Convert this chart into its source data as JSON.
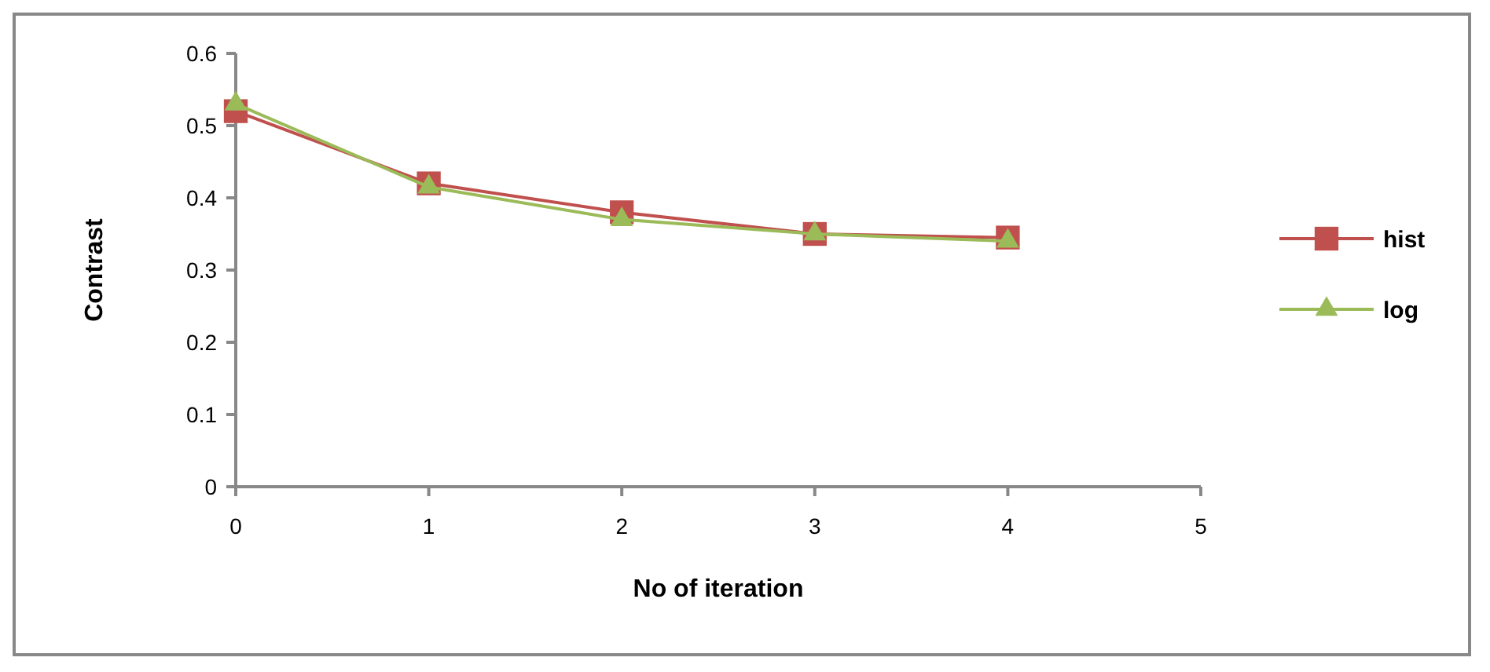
{
  "chart_data": {
    "type": "line",
    "xlabel": "No of iteration",
    "ylabel": "Contrast",
    "x": [
      0,
      1,
      2,
      3,
      4
    ],
    "series": [
      {
        "name": "hist",
        "color": "#c0504d",
        "marker": "square",
        "values": [
          0.52,
          0.42,
          0.38,
          0.35,
          0.345
        ]
      },
      {
        "name": "log",
        "color": "#9bbb59",
        "marker": "triangle",
        "values": [
          0.53,
          0.415,
          0.37,
          0.35,
          0.34
        ]
      }
    ],
    "xlim": [
      0,
      5
    ],
    "xticks": [
      0,
      1,
      2,
      3,
      4,
      5
    ],
    "ylim": [
      0,
      0.6
    ],
    "yticks": [
      0,
      0.1,
      0.2,
      0.3,
      0.4,
      0.5,
      0.6
    ],
    "grid": false,
    "legend": "right"
  }
}
